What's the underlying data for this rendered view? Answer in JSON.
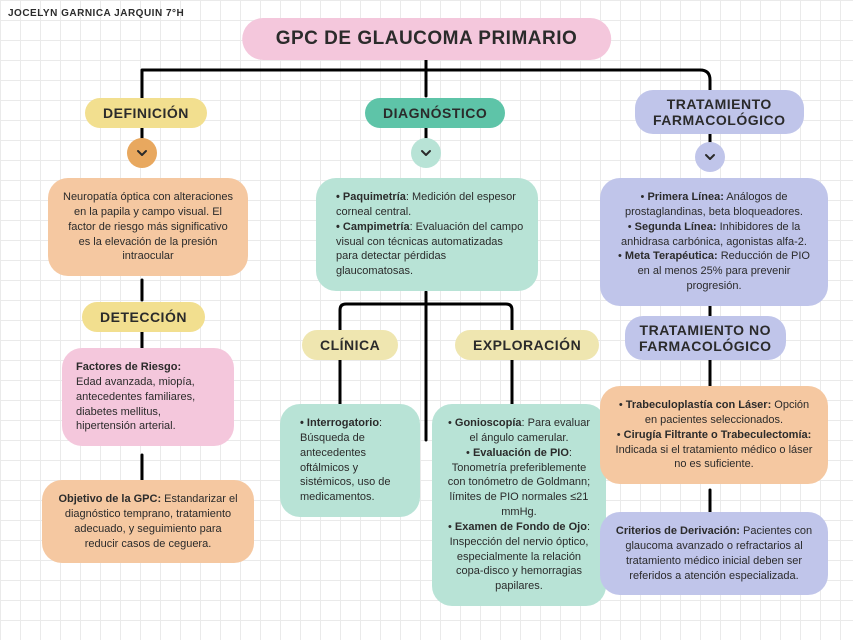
{
  "author": "JOCELYN GARNICA JARQUIN 7°H",
  "title": "GPC DE GLAUCOMA PRIMARIO",
  "labels": {
    "definicion": "DEFINICIÓN",
    "diagnostico": "DIAGNÓSTICO",
    "trat_farm": "TRATAMIENTO FARMACOLÓGICO",
    "deteccion": "DETECCIÓN",
    "clinica": "CLÍNICA",
    "exploracion": "EXPLORACIÓN",
    "trat_no_farm": "TRATAMIENTO NO FARMACOLÓGICO"
  },
  "nodes": {
    "definicion_text": "Neuropatía óptica con alteraciones en la papila y campo visual. El factor de riesgo más significativo es la elevación de la presión intraocular",
    "diagnostico_items": [
      {
        "term": "Paquimetría",
        "desc": ": Medición del espesor corneal central."
      },
      {
        "term": "Campimetría",
        "desc": ": Evaluación del campo visual con técnicas automatizadas para detectar pérdidas glaucomatosas."
      }
    ],
    "farm_items": [
      {
        "term": "Primera Línea:",
        "desc": " Análogos de prostaglandinas, beta bloqueadores."
      },
      {
        "term": "Segunda Línea:",
        "desc": " Inhibidores de la anhidrasa carbónica, agonistas alfa-2."
      },
      {
        "term": "Meta Terapéutica:",
        "desc": " Reducción de PIO en al menos 25% para prevenir progresión."
      }
    ],
    "deteccion_title": "Factores de Riesgo:",
    "deteccion_text": "Edad avanzada, miopía, antecedentes familiares, diabetes mellitus, hipertensión arterial.",
    "objetivo_title": "Objetivo de la GPC:",
    "objetivo_text": " Estandarizar el diagnóstico temprano, tratamiento adecuado, y seguimiento para reducir casos de ceguera.",
    "clinica_items": [
      {
        "term": "Interrogatorio",
        "desc": ": Búsqueda de antecedentes oftálmicos y sistémicos, uso de medicamentos."
      }
    ],
    "exploracion_items": [
      {
        "term": "Gonioscopía",
        "desc": ": Para evaluar el ángulo camerular."
      },
      {
        "term": "Evaluación de PIO",
        "desc": ": Tonometría preferiblemente con tonómetro de Goldmann; límites de PIO normales ≤21 mmHg."
      },
      {
        "term": "Examen de Fondo de Ojo",
        "desc": ": Inspección del nervio óptico, especialmente la relación copa-disco y hemorragias papilares."
      }
    ],
    "no_farm_items": [
      {
        "term": "Trabeculoplastía con Láser:",
        "desc": " Opción en pacientes seleccionados."
      },
      {
        "term": "Cirugía Filtrante o Trabeculectomía:",
        "desc": " Indicada si el tratamiento médico o láser no es suficiente."
      }
    ],
    "derivacion_title": "Criterios de Derivación:",
    "derivacion_text": " Pacientes con glaucoma avanzado o refractarios al tratamiento médico inicial deben ser referidos a atención especializada."
  },
  "colors": {
    "title_bg": "#f4c7dc",
    "yellow": "#f2df8f",
    "teal": "#5ec4a8",
    "lavender": "#c0c5ea",
    "pink": "#f4c7dc",
    "mint": "#b8e3d6",
    "peach": "#f5c8a1",
    "peach_dark": "#e8a85f",
    "chev_fill": "#2b2b2b"
  },
  "typography": {
    "title_size": 19,
    "label_size": 14,
    "body_size": 11,
    "author_size": 10
  }
}
